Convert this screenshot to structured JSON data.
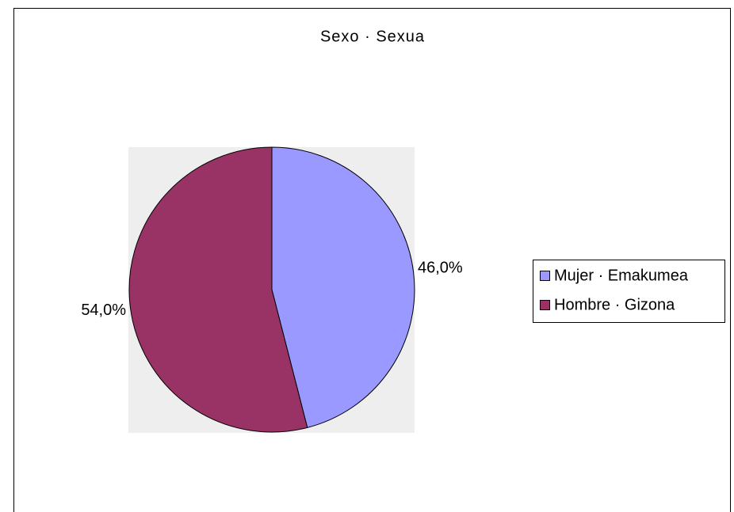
{
  "chart_data": {
    "type": "pie",
    "title": "Sexo · Sexua",
    "categories": [
      "Mujer · Emakumea",
      "Hombre · Gizona"
    ],
    "values": [
      46.0,
      54.0
    ],
    "value_labels": [
      "46,0%",
      "54,0%"
    ],
    "colors": [
      "#9999ff",
      "#993366"
    ],
    "legend": "right"
  }
}
